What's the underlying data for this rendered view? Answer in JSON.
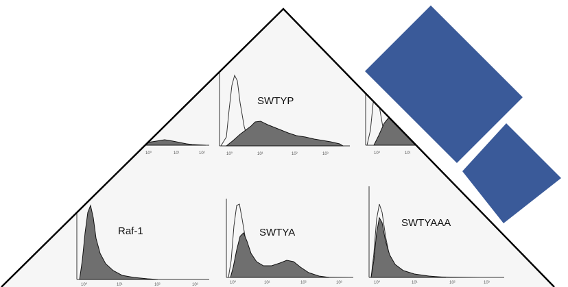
{
  "colors": {
    "accent": "#3a5a99",
    "histogram_fill": "#6f6f6f",
    "outline": "#000000"
  },
  "panels": {
    "swtyp": "SWTYP",
    "raf1": "Raf-1",
    "swtya": "SWTYA",
    "swtyaaa": "SWTYAAA"
  },
  "tick_labels": [
    "10⁰",
    "10¹",
    "10²",
    "10³"
  ]
}
